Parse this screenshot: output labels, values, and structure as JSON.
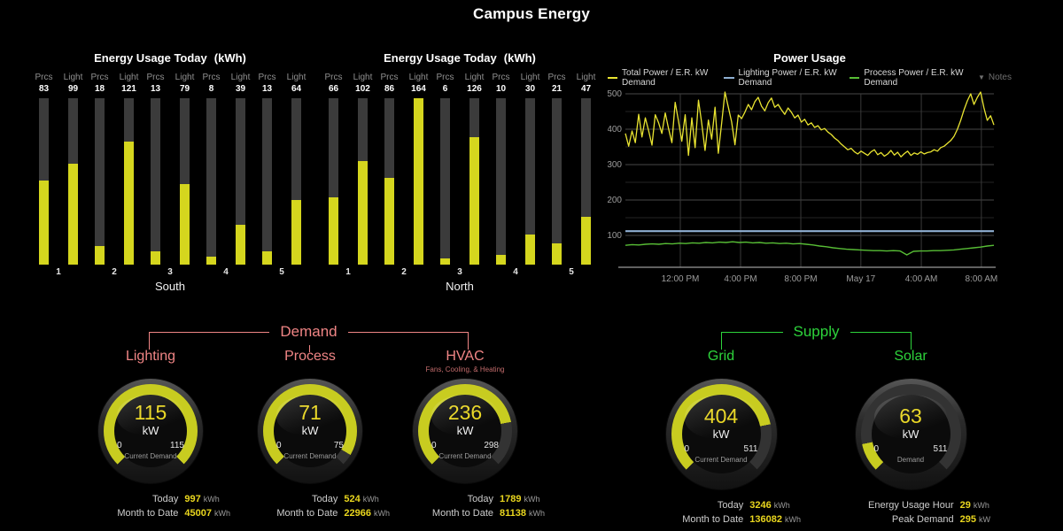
{
  "page_title": "Campus Energy",
  "colors": {
    "bar_yellow": "#d5d61e",
    "track": "#3b3b3b",
    "gray": "#8f8f8f",
    "demand": "#f08585",
    "supply": "#2dd33b",
    "val_yellow": "#e9d61e",
    "arc_yellow": "#c8cc20",
    "line_yellow": "#e9e431",
    "line_blue": "#8fafd2",
    "line_green": "#57bd35"
  },
  "chart_data": [
    {
      "type": "bar",
      "title": "Energy Usage Today",
      "unit_label": "(kWh)",
      "xlabel": "South",
      "categories": [
        "1",
        "2",
        "3",
        "4",
        "5"
      ],
      "series": [
        {
          "name": "Prcs",
          "values": [
            83,
            18,
            13,
            8,
            13
          ]
        },
        {
          "name": "Light",
          "values": [
            99,
            121,
            79,
            39,
            64
          ]
        }
      ],
      "ylim": [
        0,
        164
      ],
      "legend_position": "none",
      "grid": false
    },
    {
      "type": "bar",
      "title": "Energy Usage Today",
      "unit_label": "(kWh)",
      "xlabel": "North",
      "categories": [
        "1",
        "2",
        "3",
        "4",
        "5"
      ],
      "series": [
        {
          "name": "Prcs",
          "values": [
            66,
            86,
            6,
            10,
            21
          ]
        },
        {
          "name": "Light",
          "values": [
            102,
            164,
            126,
            30,
            47
          ]
        }
      ],
      "ylim": [
        0,
        164
      ],
      "legend_position": "none",
      "grid": false
    },
    {
      "type": "line",
      "title": "Power Usage",
      "ylabel": "",
      "xlabel": "",
      "ylim": [
        0,
        512
      ],
      "y_ticks": [
        100,
        200,
        300,
        400,
        500
      ],
      "grid": true,
      "legend_position": "top",
      "x_ticks": [
        {
          "label": "12:00 PM",
          "f": 0.149
        },
        {
          "label": "4:00 PM",
          "f": 0.3125
        },
        {
          "label": "8:00 PM",
          "f": 0.476
        },
        {
          "label": "May 17",
          "f": 0.639
        },
        {
          "label": "4:00 AM",
          "f": 0.803
        },
        {
          "label": "8:00 AM",
          "f": 0.966
        }
      ],
      "legend": [
        {
          "label": "Total Power / E.R. kW Demand",
          "color": "#e9e431"
        },
        {
          "label": "Lighting Power / E.R. kW Demand",
          "color": "#8fafd2"
        },
        {
          "label": "Process Power / E.R. kW Demand",
          "color": "#57bd35"
        }
      ],
      "notes": {
        "icon": "▼",
        "label": "Notes"
      },
      "series": [
        {
          "name": "Total Power / E.R. kW Demand",
          "color": "#e9e431",
          "width": 1.3,
          "values": [
            388,
            352,
            395,
            362,
            442,
            378,
            432,
            396,
            355,
            441,
            418,
            388,
            446,
            402,
            362,
            476,
            422,
            366,
            441,
            326,
            432,
            348,
            482,
            416,
            340,
            426,
            372,
            462,
            332,
            418,
            505,
            462,
            421,
            356,
            440,
            430,
            448,
            470,
            455,
            478,
            490,
            465,
            452,
            475,
            488,
            462,
            470,
            455,
            442,
            460,
            448,
            432,
            440,
            420,
            428,
            412,
            418,
            405,
            410,
            398,
            402,
            392,
            385,
            375,
            368,
            358,
            350,
            342,
            346,
            336,
            330,
            338,
            332,
            326,
            336,
            342,
            328,
            334,
            324,
            330,
            340,
            327,
            335,
            322,
            331,
            338,
            326,
            333,
            329,
            336,
            330,
            334,
            336,
            342,
            338,
            348,
            352,
            360,
            368,
            380,
            400,
            425,
            455,
            480,
            500,
            470,
            490,
            505,
            460,
            425,
            438,
            412
          ]
        },
        {
          "name": "Lighting Power / E.R. kW Demand",
          "color": "#8fafd2",
          "width": 2.2,
          "constant": 112
        },
        {
          "name": "Process Power / E.R. kW Demand",
          "color": "#57bd35",
          "width": 1.4,
          "values": [
            72,
            74,
            73,
            75,
            76,
            75,
            77,
            76,
            78,
            77,
            79,
            78,
            80,
            79,
            81,
            80,
            82,
            80,
            81,
            79,
            80,
            78,
            79,
            77,
            78,
            76,
            77,
            75,
            73,
            70,
            68,
            65,
            63,
            61,
            60,
            59,
            58,
            57,
            57,
            56,
            57,
            56,
            45,
            55,
            56,
            56,
            57,
            57,
            58,
            59,
            61,
            63,
            65,
            67,
            70,
            72
          ]
        }
      ]
    }
  ],
  "gauge_sections": [
    {
      "label": "Demand",
      "color": "#f08585",
      "gauges": [
        {
          "name": "Lighting",
          "sub": "",
          "value": 115,
          "unit": "kW",
          "min": 0,
          "max": 115,
          "meter_label": "Current Demand",
          "rows": [
            {
              "label": "Today",
              "value": "997",
              "unit": "kWh"
            },
            {
              "label": "Month to Date",
              "value": "45007",
              "unit": "kWh"
            }
          ]
        },
        {
          "name": "Process",
          "sub": "",
          "value": 71,
          "unit": "kW",
          "min": 0,
          "max": 75,
          "meter_label": "Current Demand",
          "rows": [
            {
              "label": "Today",
              "value": "524",
              "unit": "kWh"
            },
            {
              "label": "Month to Date",
              "value": "22966",
              "unit": "kWh"
            }
          ]
        },
        {
          "name": "HVAC",
          "sub": "Fans, Cooling, & Heating",
          "value": 236,
          "unit": "kW",
          "min": 0,
          "max": 298,
          "meter_label": "Current Demand",
          "rows": [
            {
              "label": "Today",
              "value": "1789",
              "unit": "kWh"
            },
            {
              "label": "Month to Date",
              "value": "81138",
              "unit": "kWh"
            }
          ]
        }
      ]
    },
    {
      "label": "Supply",
      "color": "#2dd33b",
      "gauges": [
        {
          "name": "Grid",
          "sub": "",
          "value": 404,
          "unit": "kW",
          "min": 0,
          "max": 511,
          "meter_label": "Current Demand",
          "rows": [
            {
              "label": "Today",
              "value": "3246",
              "unit": "kWh"
            },
            {
              "label": "Month to Date",
              "value": "136082",
              "unit": "kWh"
            }
          ]
        },
        {
          "name": "Solar",
          "sub": "",
          "value": 63,
          "unit": "kW",
          "min": 0,
          "max": 511,
          "meter_label": "Demand",
          "rows": [
            {
              "label": "Energy Usage Hour",
              "value": "29",
              "unit": "kWh"
            },
            {
              "label": "Peak Demand",
              "value": "295",
              "unit": "kW"
            }
          ]
        }
      ]
    }
  ]
}
